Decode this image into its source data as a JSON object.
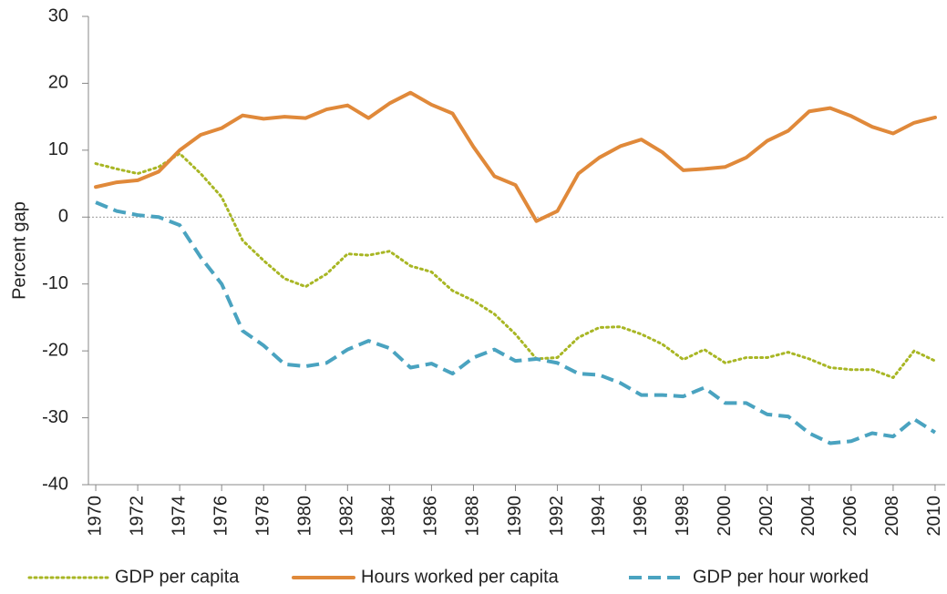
{
  "chart_data": {
    "type": "line",
    "y_label": "Percent gap",
    "x": [
      1970,
      1971,
      1972,
      1973,
      1974,
      1975,
      1976,
      1977,
      1978,
      1979,
      1980,
      1981,
      1982,
      1983,
      1984,
      1985,
      1986,
      1987,
      1988,
      1989,
      1990,
      1991,
      1992,
      1993,
      1994,
      1995,
      1996,
      1997,
      1998,
      1999,
      2000,
      2001,
      2002,
      2003,
      2004,
      2005,
      2006,
      2007,
      2008,
      2009,
      2010
    ],
    "series": [
      {
        "name": "GDP per capita",
        "color": "#a8b624",
        "style": "dotted",
        "values": [
          8,
          7.2,
          6.5,
          7.5,
          9.5,
          6.5,
          3,
          -3.5,
          -6.5,
          -9.2,
          -10.4,
          -8.5,
          -5.5,
          -5.7,
          -5.1,
          -7.3,
          -8.2,
          -11,
          -12.5,
          -14.5,
          -17.5,
          -21.2,
          -21,
          -18,
          -16.5,
          -16.4,
          -17.5,
          -19,
          -21.3,
          -19.8,
          -21.8,
          -21,
          -21,
          -20.2,
          -21.2,
          -22.5,
          -22.8,
          -22.8,
          -24,
          -20,
          -21.5
        ]
      },
      {
        "name": "Hours worked per capita",
        "color": "#e0893a",
        "style": "solid",
        "values": [
          4.5,
          5.2,
          5.5,
          6.8,
          10,
          12.3,
          13.3,
          15.2,
          14.7,
          15,
          14.8,
          16.1,
          16.7,
          14.8,
          17,
          18.6,
          16.8,
          15.5,
          10.5,
          6.1,
          4.8,
          -0.6,
          0.9,
          6.5,
          8.9,
          10.6,
          11.6,
          9.7,
          7,
          7.2,
          7.5,
          8.9,
          11.4,
          12.9,
          15.8,
          16.3,
          15.1,
          13.5,
          12.5,
          14.1,
          14.9
        ]
      },
      {
        "name": "GDP per hour worked",
        "color": "#4aa3c0",
        "style": "dashed",
        "values": [
          2.2,
          0.9,
          0.3,
          0,
          -1.2,
          -6,
          -10,
          -17,
          -19.2,
          -22,
          -22.3,
          -21.8,
          -19.8,
          -18.5,
          -19.6,
          -22.5,
          -21.9,
          -23.4,
          -21,
          -19.8,
          -21.5,
          -21.2,
          -21.8,
          -23.4,
          -23.6,
          -24.8,
          -26.6,
          -26.6,
          -26.8,
          -25.5,
          -27.8,
          -27.8,
          -29.5,
          -29.8,
          -32.3,
          -33.8,
          -33.5,
          -32.3,
          -32.8,
          -30.2,
          -32.2
        ]
      }
    ],
    "xlim": [
      1969.65,
      2010.48
    ],
    "xticks": [
      1970,
      1972,
      1974,
      1976,
      1978,
      1980,
      1982,
      1984,
      1986,
      1988,
      1990,
      1992,
      1994,
      1996,
      1998,
      2000,
      2002,
      2004,
      2006,
      2008,
      2010
    ],
    "ylim": [
      -40,
      30
    ],
    "yticks": [
      -40,
      -30,
      -20,
      -10,
      0,
      10,
      20,
      30
    ],
    "zero_line": true,
    "legend": "bottom"
  }
}
